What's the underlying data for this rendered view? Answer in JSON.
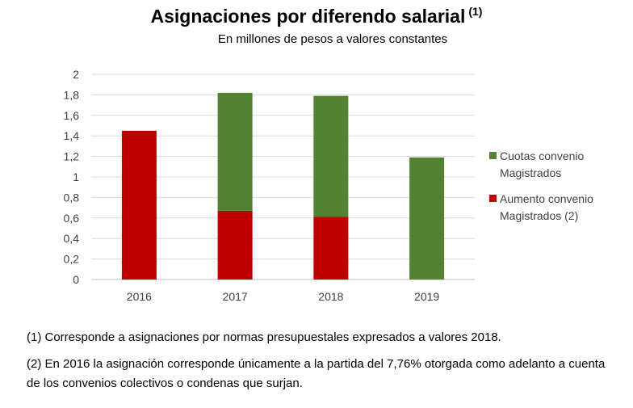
{
  "title": "Asignaciones por diferendo salarial",
  "title_note": "(1)",
  "subtitle": "En millones de pesos a valores constantes",
  "chart_data": {
    "type": "bar",
    "stacked": true,
    "categories": [
      "2016",
      "2017",
      "2018",
      "2019"
    ],
    "series": [
      {
        "name": "Aumento convenio Magistrados (2)",
        "color": "#c00000",
        "values": [
          1.45,
          0.67,
          0.61,
          0
        ]
      },
      {
        "name": "Cuotas convenio Magistrados",
        "color": "#548235",
        "values": [
          0,
          1.15,
          1.18,
          1.19
        ]
      }
    ],
    "yticks": [
      "0",
      "0,2",
      "0,4",
      "0,6",
      "0,8",
      "1",
      "1,2",
      "1,4",
      "1,6",
      "1,8",
      "2"
    ],
    "ylim": [
      0,
      2
    ],
    "grid": true,
    "legend_position": "right"
  },
  "legend": [
    {
      "label": "Cuotas convenio\nMagistrados",
      "color": "#548235"
    },
    {
      "label": "Aumento convenio\nMagistrados (2)",
      "color": "#c00000"
    }
  ],
  "footnotes": [
    "(1) Corresponde a asignaciones por normas presupuestales expresados a valores 2018.",
    "(2) En 2016 la asignación corresponde únicamente a la partida del 7,76% otorgada como adelanto a cuenta de los convenios colectivos o condenas que surjan."
  ]
}
